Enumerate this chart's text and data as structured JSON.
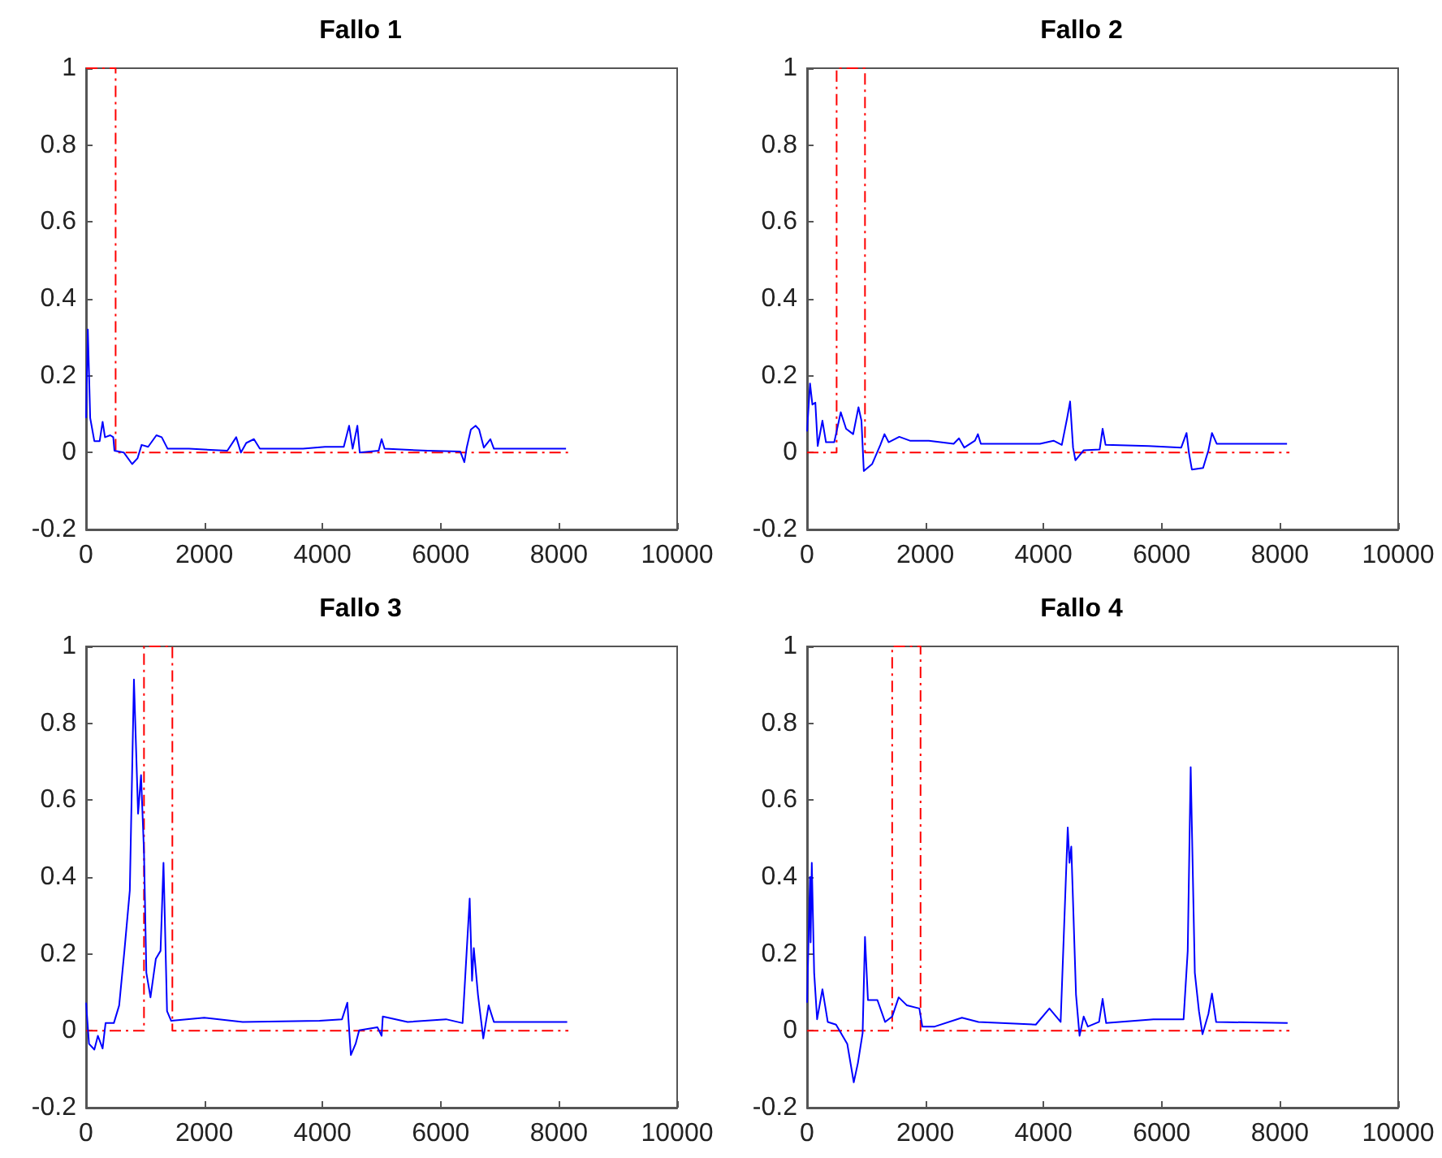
{
  "chart_data": [
    {
      "type": "line",
      "title": "Fallo 1",
      "xlim": [
        0,
        10000
      ],
      "xticks": [
        0,
        2000,
        4000,
        6000,
        8000,
        10000
      ],
      "ylim": [
        -0.2,
        1
      ],
      "yticks": [
        -0.2,
        0,
        0.2,
        0.4,
        0.6,
        0.8,
        1
      ],
      "series": [
        {
          "color": "#0000ff",
          "line_style": "solid",
          "x": [
            0,
            30,
            70,
            140,
            230,
            280,
            320,
            410,
            460,
            480,
            640,
            780,
            870,
            940,
            1050,
            1190,
            1280,
            1380,
            1740,
            2390,
            2540,
            2620,
            2710,
            2840,
            2940,
            3670,
            4040,
            4360,
            4450,
            4510,
            4590,
            4630,
            4950,
            5000,
            5050,
            5780,
            6330,
            6400,
            6440,
            6510,
            6590,
            6650,
            6730,
            6840,
            6900,
            7710,
            8120
          ],
          "values": [
            0.09,
            0.32,
            0.09,
            0.03,
            0.03,
            0.08,
            0.04,
            0.045,
            0.04,
            0.005,
            0,
            -0.03,
            -0.015,
            0.02,
            0.015,
            0.045,
            0.04,
            0.01,
            0.01,
            0.005,
            0.04,
            0,
            0.025,
            0.035,
            0.01,
            0.01,
            0.015,
            0.015,
            0.07,
            0.01,
            0.07,
            0,
            0.005,
            0.035,
            0.01,
            0.005,
            0.003,
            -0.025,
            0.013,
            0.06,
            0.07,
            0.06,
            0.013,
            0.035,
            0.01,
            0.01,
            0.01
          ]
        },
        {
          "color": "#ff0000",
          "line_style": "dashed",
          "x": [
            0,
            500,
            500,
            8160
          ],
          "values": [
            1,
            1,
            0,
            0
          ]
        }
      ]
    },
    {
      "type": "line",
      "title": "Fallo 2",
      "xlim": [
        0,
        10000
      ],
      "xticks": [
        0,
        2000,
        4000,
        6000,
        8000,
        10000
      ],
      "ylim": [
        -0.2,
        1
      ],
      "yticks": [
        -0.2,
        0,
        0.2,
        0.4,
        0.6,
        0.8,
        1
      ],
      "series": [
        {
          "color": "#0000ff",
          "line_style": "solid",
          "x": [
            0,
            50,
            90,
            140,
            180,
            260,
            320,
            460,
            570,
            660,
            780,
            870,
            920,
            960,
            1100,
            1240,
            1310,
            1380,
            1560,
            1740,
            2060,
            2480,
            2570,
            2660,
            2840,
            2890,
            2940,
            3940,
            4170,
            4310,
            4400,
            4450,
            4500,
            4540,
            4680,
            4950,
            5000,
            5050,
            5780,
            6330,
            6420,
            6460,
            6510,
            6700,
            6790,
            6850,
            6930,
            8120
          ],
          "values": [
            0.055,
            0.18,
            0.125,
            0.13,
            0.017,
            0.083,
            0.027,
            0.027,
            0.105,
            0.062,
            0.048,
            0.118,
            0.083,
            -0.048,
            -0.03,
            0.02,
            0.048,
            0.027,
            0.041,
            0.031,
            0.031,
            0.023,
            0.037,
            0.013,
            0.031,
            0.048,
            0.023,
            0.023,
            0.031,
            0.02,
            0.09,
            0.133,
            0.013,
            -0.02,
            0.006,
            0.008,
            0.062,
            0.02,
            0.017,
            0.013,
            0.051,
            0,
            -0.044,
            -0.04,
            0.006,
            0.051,
            0.023,
            0.023
          ]
        },
        {
          "color": "#ff0000",
          "line_style": "dashed",
          "x": [
            0,
            500,
            500,
            980,
            980,
            8160
          ],
          "values": [
            0,
            0,
            1,
            1,
            0,
            0
          ]
        }
      ]
    },
    {
      "type": "line",
      "title": "Fallo 3",
      "xlim": [
        0,
        10000
      ],
      "xticks": [
        0,
        2000,
        4000,
        6000,
        8000,
        10000
      ],
      "ylim": [
        -0.2,
        1
      ],
      "yticks": [
        -0.2,
        0,
        0.2,
        0.4,
        0.6,
        0.8,
        1
      ],
      "series": [
        {
          "color": "#0000ff",
          "line_style": "solid",
          "x": [
            0,
            50,
            140,
            200,
            280,
            330,
            470,
            560,
            650,
            740,
            810,
            880,
            930,
            980,
            1020,
            1090,
            1180,
            1260,
            1310,
            1370,
            1440,
            2000,
            2650,
            3950,
            4330,
            4420,
            4480,
            4560,
            4620,
            4930,
            5000,
            5020,
            5440,
            6090,
            6370,
            6490,
            6530,
            6560,
            6630,
            6720,
            6810,
            6900,
            8140
          ],
          "values": [
            0.073,
            -0.034,
            -0.049,
            -0.013,
            -0.046,
            0.02,
            0.02,
            0.066,
            0.21,
            0.365,
            0.914,
            0.565,
            0.665,
            0.465,
            0.151,
            0.087,
            0.187,
            0.208,
            0.437,
            0.051,
            0.026,
            0.034,
            0.023,
            0.026,
            0.03,
            0.073,
            -0.063,
            -0.034,
            0.001,
            0.009,
            -0.013,
            0.037,
            0.023,
            0.03,
            0.02,
            0.344,
            0.13,
            0.215,
            0.094,
            -0.02,
            0.066,
            0.023,
            0.023
          ]
        },
        {
          "color": "#ff0000",
          "line_style": "dashed",
          "x": [
            0,
            980,
            980,
            1460,
            1460,
            8160
          ],
          "values": [
            0,
            0,
            1,
            1,
            0,
            0
          ]
        }
      ]
    },
    {
      "type": "line",
      "title": "Fallo 4",
      "xlim": [
        0,
        10000
      ],
      "xticks": [
        0,
        2000,
        4000,
        6000,
        8000,
        10000
      ],
      "ylim": [
        -0.2,
        1
      ],
      "yticks": [
        -0.2,
        0,
        0.2,
        0.4,
        0.6,
        0.8,
        1
      ],
      "series": [
        {
          "color": "#0000ff",
          "line_style": "solid",
          "x": [
            0,
            50,
            60,
            80,
            120,
            170,
            260,
            350,
            490,
            680,
            790,
            860,
            940,
            980,
            1030,
            1190,
            1320,
            1440,
            1550,
            1690,
            1900,
            1950,
            2160,
            2620,
            2900,
            3870,
            4100,
            4290,
            4410,
            4440,
            4470,
            4550,
            4610,
            4680,
            4750,
            4940,
            5000,
            5060,
            5860,
            6370,
            6440,
            6490,
            6560,
            6630,
            6690,
            6790,
            6850,
            6920,
            8130
          ],
          "values": [
            0.073,
            0.4,
            0.23,
            0.437,
            0.151,
            0.03,
            0.108,
            0.023,
            0.016,
            -0.034,
            -0.134,
            -0.084,
            -0.006,
            0.244,
            0.08,
            0.08,
            0.023,
            0.037,
            0.087,
            0.066,
            0.058,
            0.011,
            0.011,
            0.034,
            0.023,
            0.016,
            0.058,
            0.023,
            0.529,
            0.437,
            0.479,
            0.094,
            -0.013,
            0.037,
            0.011,
            0.023,
            0.083,
            0.02,
            0.03,
            0.03,
            0.208,
            0.686,
            0.151,
            0.051,
            -0.009,
            0.044,
            0.097,
            0.023,
            0.02
          ]
        },
        {
          "color": "#ff0000",
          "line_style": "dashed",
          "x": [
            0,
            1440,
            1440,
            1920,
            1920,
            8160
          ],
          "values": [
            0,
            0,
            1,
            1,
            0,
            0
          ]
        }
      ]
    }
  ]
}
